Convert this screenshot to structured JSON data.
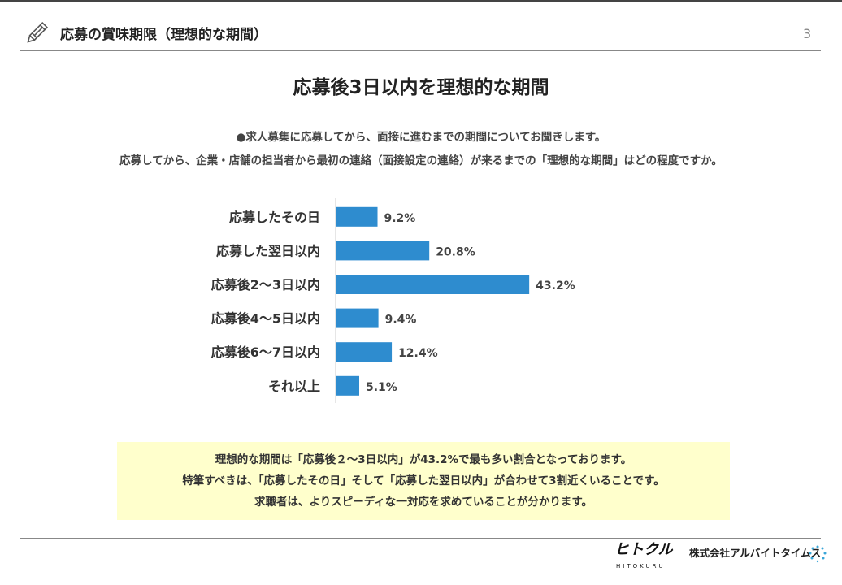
{
  "header": {
    "title": "応募の賞味期限（理想的な期間）",
    "page_number": "3"
  },
  "main_title": "応募後3日以内を理想的な期間",
  "question": [
    "●求人募集に応募してから、面接に進むまでの期間についてお聞きします。",
    "応募してから、企業・店舗の担当者から最初の連絡（面接設定の連絡）が来るまでの「理想的な期間」はどの程度ですか。"
  ],
  "chart_data": {
    "type": "bar",
    "orientation": "horizontal",
    "categories": [
      "応募したその日",
      "応募した翌日以内",
      "応募後2～3日以内",
      "応募後4～5日以内",
      "応募後6～7日以内",
      "それ以上"
    ],
    "values": [
      9.2,
      20.8,
      43.2,
      9.4,
      12.4,
      5.1
    ],
    "labels": [
      "9.2%",
      "20.8%",
      "43.2%",
      "9.4%",
      "12.4%",
      "5.1%"
    ],
    "unit": "%",
    "color": "#2e8ccf",
    "xlim": [
      0,
      50
    ],
    "grid": false
  },
  "note": [
    "理想的な期間は「応募後２～3日以内」が43.2%で最も多い割合となっております。",
    "特筆すべきは、「応募したその日」そして「応募した翌日以内」が合わせて3割近くいることです。",
    "求職者は、よりスピーディな一対応を求めていることが分かります。"
  ],
  "footer": {
    "logo": "ヒトクル",
    "logo_sub": "HITOKURU",
    "company": "株式会社アルバイトタイムス"
  }
}
